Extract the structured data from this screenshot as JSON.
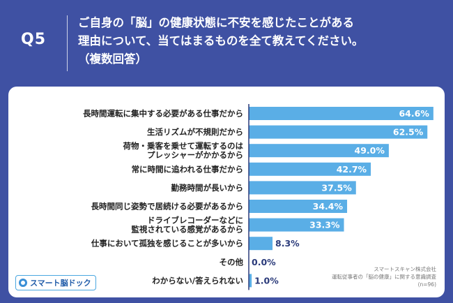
{
  "header": {
    "qlabel": "Q5",
    "question": "ご自身の「脳」の健康状態に不安を感じたことがある\n理由について、当てはまるものを全て教えてください。\n（複数回答）"
  },
  "chart_data": {
    "type": "bar",
    "orientation": "horizontal",
    "categories": [
      "長時間運転に集中する必要がある仕事だから",
      "生活リズムが不規則だから",
      "荷物・乗客を乗せて運転するのは\nプレッシャーがかかるから",
      "常に時間に追われる仕事だから",
      "勤務時間が長いから",
      "長時間同じ姿勢で居続ける必要があるから",
      "ドライブレコーダーなどに\n監視されている感覚があるから",
      "仕事において孤独を感じることが多いから",
      "その他",
      "わからない/答えられない"
    ],
    "values": [
      64.6,
      62.5,
      49.0,
      42.7,
      37.5,
      34.4,
      33.3,
      8.3,
      0.0,
      1.0
    ],
    "value_labels": [
      "64.6%",
      "62.5%",
      "49.0%",
      "42.7%",
      "37.5%",
      "34.4%",
      "33.3%",
      "8.3%",
      "0.0%",
      "1.0%"
    ],
    "xlim": [
      0,
      100
    ],
    "bar_color": "#5aaee6",
    "baseline_color": "#2a3a7a",
    "grid": false,
    "legend": "none"
  },
  "logo": {
    "text": "スマート脳ドック"
  },
  "source": {
    "company": "スマートスキャン株式会社",
    "survey": "運転従事者の「脳の健康」に関する意識調査",
    "n": "(n=96)"
  }
}
